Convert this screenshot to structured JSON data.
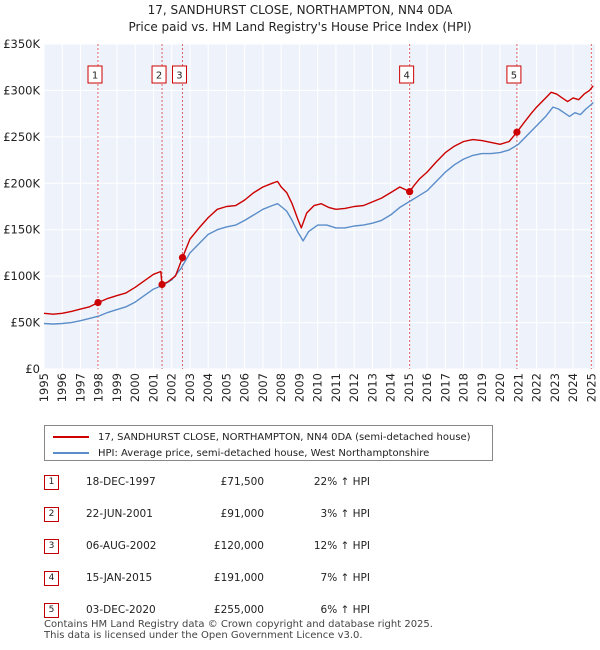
{
  "chart_data": {
    "type": "line",
    "title": "17, SANDHURST CLOSE, NORTHAMPTON, NN4 0DA",
    "subtitle": "Price paid vs. HM Land Registry's House Price Index (HPI)",
    "xlim": [
      1995,
      2025.2
    ],
    "ylim": [
      0,
      350000
    ],
    "x_ticks": [
      "1995",
      "1996",
      "1997",
      "1998",
      "1999",
      "2000",
      "2001",
      "2002",
      "2003",
      "2004",
      "2005",
      "2006",
      "2007",
      "2008",
      "2009",
      "2010",
      "2011",
      "2012",
      "2013",
      "2014",
      "2015",
      "2016",
      "2017",
      "2018",
      "2019",
      "2020",
      "2021",
      "2022",
      "2023",
      "2024",
      "2025"
    ],
    "y_ticks": [
      {
        "value": 0,
        "label": "£0"
      },
      {
        "value": 50000,
        "label": "£50K"
      },
      {
        "value": 100000,
        "label": "£100K"
      },
      {
        "value": 150000,
        "label": "£150K"
      },
      {
        "value": 200000,
        "label": "£200K"
      },
      {
        "value": 250000,
        "label": "£250K"
      },
      {
        "value": 300000,
        "label": "£300K"
      },
      {
        "value": 350000,
        "label": "£350K"
      }
    ],
    "grid": true,
    "series": [
      {
        "name": "17, SANDHURST CLOSE, NORTHAMPTON, NN4 0DA (semi-detached house)",
        "color": "#cc0000",
        "x": [
          1995.0,
          1995.5,
          1996.0,
          1996.5,
          1997.0,
          1997.5,
          1997.96,
          1998.5,
          1999.0,
          1999.5,
          2000.0,
          2000.5,
          2001.0,
          2001.4,
          2001.47,
          2001.8,
          2002.2,
          2002.59,
          2003.0,
          2003.5,
          2004.0,
          2004.5,
          2005.0,
          2005.5,
          2006.0,
          2006.5,
          2007.0,
          2007.5,
          2007.8,
          2008.0,
          2008.3,
          2008.6,
          2008.9,
          2009.1,
          2009.4,
          2009.8,
          2010.2,
          2010.6,
          2011.0,
          2011.5,
          2012.0,
          2012.5,
          2013.0,
          2013.5,
          2014.0,
          2014.5,
          2015.04,
          2015.3,
          2015.6,
          2016.0,
          2016.5,
          2017.0,
          2017.5,
          2018.0,
          2018.5,
          2019.0,
          2019.5,
          2020.0,
          2020.5,
          2020.92,
          2021.3,
          2021.7,
          2022.0,
          2022.4,
          2022.8,
          2023.1,
          2023.4,
          2023.7,
          2024.0,
          2024.3,
          2024.6,
          2024.9,
          2025.1
        ],
        "values": [
          60000,
          59000,
          60000,
          62000,
          64500,
          67000,
          71500,
          76000,
          79000,
          82000,
          88000,
          95000,
          102000,
          105000,
          91000,
          94000,
          100000,
          120000,
          140000,
          152000,
          163000,
          172000,
          175000,
          176000,
          182000,
          190000,
          196000,
          200000,
          202000,
          196000,
          190000,
          178000,
          162000,
          152000,
          168000,
          176000,
          178000,
          174000,
          172000,
          173000,
          175000,
          176000,
          180000,
          184000,
          190000,
          196000,
          191000,
          198000,
          205000,
          212000,
          223000,
          233000,
          240000,
          245000,
          247000,
          246000,
          244000,
          242000,
          245000,
          255000,
          265000,
          275000,
          282000,
          290000,
          298000,
          296000,
          292000,
          288000,
          292000,
          290000,
          296000,
          300000,
          305000
        ]
      },
      {
        "name": "HPI: Average price, semi-detached house, West Northamptonshire",
        "color": "#5b8dc9",
        "x": [
          1995.0,
          1995.5,
          1996.0,
          1996.5,
          1997.0,
          1997.5,
          1998.0,
          1998.5,
          1999.0,
          1999.5,
          2000.0,
          2000.5,
          2001.0,
          2001.5,
          2002.0,
          2002.5,
          2003.0,
          2003.5,
          2004.0,
          2004.5,
          2005.0,
          2005.5,
          2006.0,
          2006.5,
          2007.0,
          2007.5,
          2007.8,
          2008.0,
          2008.3,
          2008.6,
          2008.9,
          2009.2,
          2009.5,
          2010.0,
          2010.5,
          2011.0,
          2011.5,
          2012.0,
          2012.5,
          2013.0,
          2013.5,
          2014.0,
          2014.5,
          2015.0,
          2015.5,
          2016.0,
          2016.5,
          2017.0,
          2017.5,
          2018.0,
          2018.5,
          2019.0,
          2019.5,
          2020.0,
          2020.5,
          2021.0,
          2021.5,
          2022.0,
          2022.5,
          2022.9,
          2023.2,
          2023.5,
          2023.8,
          2024.1,
          2024.4,
          2024.7,
          2025.0,
          2025.1
        ],
        "values": [
          49000,
          48500,
          49000,
          50000,
          52000,
          54500,
          57000,
          61000,
          64000,
          67000,
          72000,
          79000,
          86000,
          90000,
          96000,
          108000,
          125000,
          135000,
          145000,
          150000,
          153000,
          155000,
          160000,
          166000,
          172000,
          176000,
          178000,
          175000,
          170000,
          160000,
          148000,
          138000,
          148000,
          155000,
          155000,
          152000,
          152000,
          154000,
          155000,
          157000,
          160000,
          166000,
          174000,
          180000,
          186000,
          192000,
          202000,
          212000,
          220000,
          226000,
          230000,
          232000,
          232000,
          233000,
          236000,
          242000,
          252000,
          262000,
          272000,
          282000,
          280000,
          276000,
          272000,
          276000,
          274000,
          280000,
          285000,
          287000
        ]
      }
    ],
    "annotations": [
      {
        "n": "1",
        "x": 1997.96,
        "price": 71500
      },
      {
        "n": "2",
        "x": 2001.47,
        "price": 91000
      },
      {
        "n": "3",
        "x": 2002.59,
        "price": 120000
      },
      {
        "n": "4",
        "x": 2015.04,
        "price": 191000
      },
      {
        "n": "5",
        "x": 2020.92,
        "price": 255000
      }
    ],
    "legend_placement": "below"
  },
  "sales": [
    {
      "n": "1",
      "date": "18-DEC-1997",
      "price": "£71,500",
      "hpi": "22% ↑ HPI"
    },
    {
      "n": "2",
      "date": "22-JUN-2001",
      "price": "£91,000",
      "hpi": "3% ↑ HPI"
    },
    {
      "n": "3",
      "date": "06-AUG-2002",
      "price": "£120,000",
      "hpi": "12% ↑ HPI"
    },
    {
      "n": "4",
      "date": "15-JAN-2015",
      "price": "£191,000",
      "hpi": "7% ↑ HPI"
    },
    {
      "n": "5",
      "date": "03-DEC-2020",
      "price": "£255,000",
      "hpi": "6% ↑ HPI"
    }
  ],
  "footer": {
    "line1": "Contains HM Land Registry data © Crown copyright and database right 2025.",
    "line2": "This data is licensed under the Open Government Licence v3.0."
  }
}
